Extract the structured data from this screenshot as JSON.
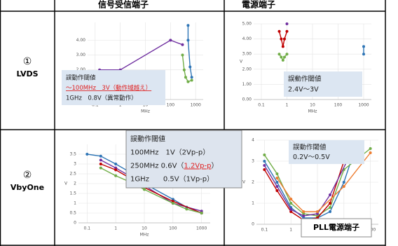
{
  "table": {
    "columns": [
      "信号受信端子",
      "電源端子"
    ],
    "rows": [
      {
        "number": "①",
        "name": "LVDS",
        "cells": [
          {
            "type": "line",
            "xscale": "log",
            "xlim": [
              0.05,
              2000
            ],
            "xticks": [
              0.1,
              1,
              10,
              100,
              1000
            ],
            "xlabel": "MHz",
            "ylim": [
              0,
              5.2
            ],
            "yticks": [
              {
                "value": 2,
                "label": "2.00"
              },
              {
                "value": 3,
                "label": "3.00"
              },
              {
                "value": 4,
                "label": "4.00"
              }
            ],
            "grid": true,
            "series": [
              {
                "color": "#7030a0",
                "x": [
                  0.15,
                  1,
                  100,
                  300
                ],
                "values": [
                  2.0,
                  2.0,
                  4.0,
                  3.7
                ]
              },
              {
                "color": "#2e75b6",
                "x": [
                  500,
                  500,
                  600,
                  700
                ],
                "values": [
                  5.0,
                  4.0,
                  2.2,
                  1.5
                ]
              },
              {
                "color": "#70ad47",
                "x": [
                  300,
                  350,
                  400,
                  500,
                  700
                ],
                "values": [
                  3.0,
                  2.0,
                  1.5,
                  1.2,
                  1.3
                ]
              }
            ],
            "annotation": {
              "lines": [
                [
                  {
                    "text": "誤動作閾値"
                  }
                ],
                [
                  {
                    "text": "～100MHz　3V（動作域越え）",
                    "color": "#e02020"
                  }
                ],
                [
                  {
                    "text": "1GHz　0.8V（異常動作）"
                  }
                ]
              ]
            }
          },
          {
            "type": "line",
            "xscale": "log",
            "xlim": [
              0.05,
              2000
            ],
            "xticks": [
              0.1,
              1,
              10,
              100,
              1000
            ],
            "xlabel": "MHz",
            "ylabel": "V",
            "ylim": [
              0,
              5
            ],
            "yticks": [
              {
                "value": 0,
                "label": "0.00"
              },
              {
                "value": 1,
                "label": "1.00"
              },
              {
                "value": 2,
                "label": "2.00"
              },
              {
                "value": 3,
                "label": "3.00"
              },
              {
                "value": 4,
                "label": "4.00"
              },
              {
                "value": 5,
                "label": "5.00"
              }
            ],
            "grid": true,
            "series": [
              {
                "color": "#c00000",
                "x": [
                  0.5,
                  0.6,
                  0.7,
                  0.8,
                  1
                ],
                "values": [
                  4.5,
                  4.0,
                  3.5,
                  4.0,
                  4.5
                ]
              },
              {
                "color": "#70ad47",
                "x": [
                  0.5,
                  0.6,
                  0.7,
                  0.8,
                  1
                ],
                "values": [
                  3.0,
                  2.8,
                  2.6,
                  2.8,
                  3.0
                ]
              },
              {
                "color": "#7030a0",
                "x": [
                  1
                ],
                "values": [
                  5.0
                ]
              },
              {
                "color": "#2e75b6",
                "x": [
                  1000,
                  1000
                ],
                "values": [
                  3.0,
                  3.5
                ]
              }
            ],
            "annotation": {
              "lines": [
                [
                  {
                    "text": "誤動作閾値"
                  }
                ],
                [
                  {
                    "text": "2.4V～3V"
                  }
                ]
              ]
            }
          }
        ]
      },
      {
        "number": "②",
        "name": "VbyOne",
        "cells": [
          {
            "type": "line",
            "xscale": "log",
            "xlim": [
              0.05,
              2000
            ],
            "xticks": [
              0.1,
              1,
              10,
              100,
              1000
            ],
            "xlabel": "MHz",
            "ylabel": "V",
            "ylim": [
              0,
              4
            ],
            "yticks": [
              0,
              0.5,
              1,
              1.5,
              2,
              2.5,
              3,
              3.5
            ],
            "grid": true,
            "series": [
              {
                "color": "#2e75b6",
                "x": [
                  0.1,
                  0.3,
                  1,
                  3,
                  10,
                  100,
                  300,
                  1000
                ],
                "values": [
                  3.5,
                  3.4,
                  3.0,
                  2.6,
                  2.0,
                  1.2,
                  0.8,
                  0.5
                ]
              },
              {
                "color": "#7030a0",
                "x": [
                  0.3,
                  1,
                  3,
                  10,
                  100,
                  1000
                ],
                "values": [
                  3.2,
                  2.8,
                  2.4,
                  1.9,
                  1.0,
                  0.6
                ]
              },
              {
                "color": "#c00000",
                "x": [
                  0.3,
                  1,
                  3,
                  10,
                  100,
                  1000
                ],
                "values": [
                  3.0,
                  2.7,
                  2.3,
                  1.8,
                  1.1,
                  0.5
                ]
              },
              {
                "color": "#70ad47",
                "x": [
                  0.3,
                  1,
                  3,
                  10,
                  100,
                  300,
                  1000
                ],
                "values": [
                  2.8,
                  2.4,
                  2.1,
                  1.7,
                  1.0,
                  0.7,
                  0.5
                ]
              }
            ],
            "annotation": {
              "lines": [
                [
                  {
                    "text": "誤動作閾値"
                  }
                ],
                [
                  {
                    "text": "100MHz　1V（2Vp-p）"
                  }
                ],
                [
                  {
                    "text": "250MHz 0.6V（"
                  },
                  {
                    "text": "1.2Vp-p",
                    "color": "#e02020"
                  },
                  {
                    "text": "）"
                  }
                ],
                [
                  {
                    "text": "1GHz　　0.5V（1Vp-p）"
                  }
                ]
              ]
            }
          },
          {
            "type": "line",
            "xscale": "log",
            "xlim": [
              0.05,
              2000
            ],
            "xticks": [
              0.1,
              1,
              10,
              100,
              1000
            ],
            "ylabel": "V",
            "ylim": [
              0,
              4
            ],
            "yticks": [
              0,
              1,
              2,
              3,
              4
            ],
            "grid": true,
            "series": [
              {
                "color": "#2e75b6",
                "x": [
                  0.1,
                  0.3,
                  1,
                  3,
                  10,
                  30,
                  100,
                  300
                ],
                "values": [
                  3.0,
                  2.0,
                  0.8,
                  0.3,
                  0.3,
                  0.6,
                  2.0,
                  3.8
                ]
              },
              {
                "color": "#70ad47",
                "x": [
                  0.1,
                  0.3,
                  1,
                  3,
                  10,
                  30,
                  100,
                  1000
                ],
                "values": [
                  3.3,
                  2.4,
                  1.0,
                  0.5,
                  0.4,
                  0.8,
                  2.6,
                  3.6
                ]
              },
              {
                "color": "#c00000",
                "x": [
                  0.1,
                  0.3,
                  1,
                  3,
                  10,
                  30,
                  100
                ],
                "values": [
                  2.6,
                  1.6,
                  0.6,
                  0.2,
                  0.3,
                  1.0,
                  3.0
                ]
              },
              {
                "color": "#7030a0",
                "x": [
                  0.1,
                  0.3,
                  1,
                  3,
                  10,
                  30,
                  300
                ],
                "values": [
                  2.8,
                  1.8,
                  0.7,
                  0.4,
                  0.5,
                  1.4,
                  3.9
                ]
              },
              {
                "color": "#ed7d31",
                "x": [
                  0.3,
                  1,
                  3,
                  10,
                  100,
                  1000
                ],
                "values": [
                  2.2,
                  1.2,
                  0.6,
                  0.6,
                  1.8,
                  3.4
                ]
              }
            ],
            "annotation": {
              "lines": [
                [
                  {
                    "text": "誤動作閾値"
                  }
                ],
                [
                  {
                    "text": "0.2V～0.5V"
                  }
                ]
              ]
            },
            "label": "PLL電源端子"
          }
        ]
      }
    ]
  }
}
